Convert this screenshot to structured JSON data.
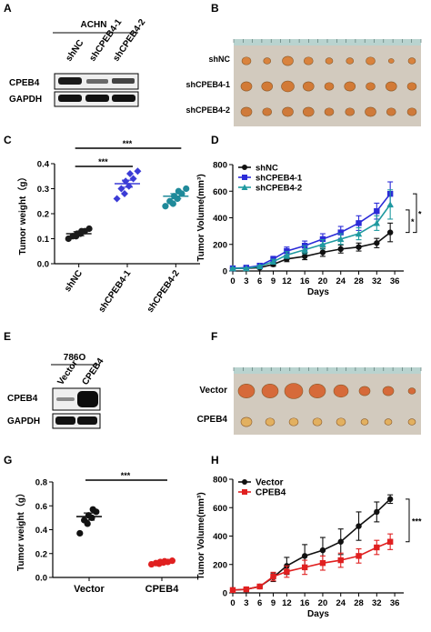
{
  "panels": {
    "A": {
      "letter": "A",
      "cell_line": "ACHN",
      "lanes": [
        "shNC",
        "shCPEB4-1",
        "shCPEB4-2"
      ],
      "rows": [
        "CPEB4",
        "GAPDH"
      ]
    },
    "B": {
      "letter": "B",
      "rows": [
        "shNC",
        "shCPEB4-1",
        "shCPEB4-2"
      ]
    },
    "E": {
      "letter": "E",
      "cell_line": "786O",
      "lanes": [
        "Vector",
        "CPEB4"
      ],
      "rows": [
        "CPEB4",
        "GAPDH"
      ]
    },
    "F": {
      "letter": "F",
      "rows": [
        "Vector",
        "CPEB4"
      ]
    }
  },
  "chart_data": [
    {
      "panel": "C",
      "type": "scatter",
      "ylabel": "Tumor weight（g）",
      "ylim": [
        0.0,
        0.4
      ],
      "yticks": [
        "0.0",
        "0.1",
        "0.2",
        "0.3",
        "0.4"
      ],
      "categories": [
        "shNC",
        "shCPEB4-1",
        "shCPEB4-2"
      ],
      "colors": [
        "#1a1a1a",
        "#3b3bd6",
        "#1f8a9a"
      ],
      "points": [
        [
          0.1,
          0.11,
          0.11,
          0.12,
          0.12,
          0.13,
          0.13,
          0.14
        ],
        [
          0.26,
          0.28,
          0.3,
          0.31,
          0.33,
          0.34,
          0.36,
          0.37
        ],
        [
          0.23,
          0.24,
          0.25,
          0.26,
          0.27,
          0.28,
          0.29,
          0.3
        ]
      ],
      "means": [
        0.12,
        0.32,
        0.27
      ],
      "sem": [
        0.008,
        0.014,
        0.01
      ],
      "significance": [
        {
          "from": 0,
          "to": 1,
          "label": "***"
        },
        {
          "from": 0,
          "to": 2,
          "label": "***"
        }
      ]
    },
    {
      "panel": "D",
      "type": "line",
      "xlabel": "Days",
      "ylabel": "Tumor Volume(mm³)",
      "ylim": [
        0,
        800
      ],
      "yticks": [
        "0",
        "200",
        "400",
        "600",
        "800"
      ],
      "xlim": [
        0,
        38
      ],
      "xticks": [
        "0",
        "3",
        "6",
        "9",
        "12",
        "16",
        "20",
        "24",
        "28",
        "32",
        "36"
      ],
      "x": [
        0,
        3,
        6,
        9,
        12,
        16,
        20,
        24,
        28,
        32,
        35
      ],
      "series": [
        {
          "name": "shNC",
          "color": "#111111",
          "marker": "circle",
          "values": [
            20,
            20,
            25,
            50,
            90,
            110,
            140,
            165,
            180,
            210,
            290
          ],
          "err": [
            5,
            5,
            8,
            15,
            20,
            25,
            30,
            30,
            30,
            35,
            70
          ]
        },
        {
          "name": "shCPEB4-1",
          "color": "#2b2bd8",
          "marker": "square",
          "values": [
            20,
            25,
            40,
            90,
            150,
            190,
            240,
            290,
            360,
            450,
            580
          ],
          "err": [
            5,
            5,
            10,
            20,
            30,
            35,
            40,
            45,
            55,
            60,
            90
          ]
        },
        {
          "name": "shCPEB4-2",
          "color": "#1f9aa0",
          "marker": "triangle",
          "values": [
            20,
            20,
            35,
            70,
            120,
            160,
            200,
            240,
            280,
            360,
            500
          ],
          "err": [
            5,
            5,
            8,
            18,
            25,
            30,
            35,
            40,
            45,
            55,
            110
          ]
        }
      ],
      "significance": [
        "*",
        "*"
      ]
    },
    {
      "panel": "G",
      "type": "scatter",
      "ylabel": "Tumor weight（g）",
      "ylim": [
        0.0,
        0.8
      ],
      "yticks": [
        "0.0",
        "0.2",
        "0.4",
        "0.6",
        "0.8"
      ],
      "categories": [
        "Vector",
        "CPEB4"
      ],
      "colors": [
        "#111111",
        "#e02020"
      ],
      "points": [
        [
          0.37,
          0.45,
          0.48,
          0.5,
          0.52,
          0.55,
          0.57
        ],
        [
          0.11,
          0.115,
          0.12,
          0.125,
          0.13,
          0.13,
          0.135,
          0.14
        ]
      ],
      "means": [
        0.51,
        0.125
      ],
      "sem": [
        0.03,
        0.005
      ],
      "significance": [
        {
          "from": 0,
          "to": 1,
          "label": "***"
        }
      ]
    },
    {
      "panel": "H",
      "type": "line",
      "xlabel": "Days",
      "ylabel": "Tumor Volume(mm³)",
      "ylim": [
        0,
        800
      ],
      "yticks": [
        "0",
        "200",
        "400",
        "600",
        "800"
      ],
      "xlim": [
        0,
        38
      ],
      "xticks": [
        "0",
        "3",
        "6",
        "9",
        "12",
        "16",
        "20",
        "24",
        "28",
        "32",
        "36"
      ],
      "x": [
        0,
        3,
        6,
        9,
        12,
        16,
        20,
        24,
        28,
        32,
        35
      ],
      "series": [
        {
          "name": "Vector",
          "color": "#111111",
          "marker": "circle",
          "values": [
            20,
            25,
            45,
            110,
            190,
            260,
            300,
            360,
            470,
            570,
            660
          ],
          "err": [
            5,
            5,
            10,
            30,
            60,
            80,
            90,
            90,
            100,
            70,
            30
          ]
        },
        {
          "name": "CPEB4",
          "color": "#e02020",
          "marker": "square",
          "values": [
            20,
            25,
            45,
            115,
            150,
            180,
            210,
            230,
            260,
            320,
            360
          ],
          "err": [
            5,
            5,
            10,
            30,
            40,
            50,
            50,
            50,
            50,
            50,
            55
          ]
        }
      ],
      "significance": [
        "***"
      ]
    }
  ]
}
